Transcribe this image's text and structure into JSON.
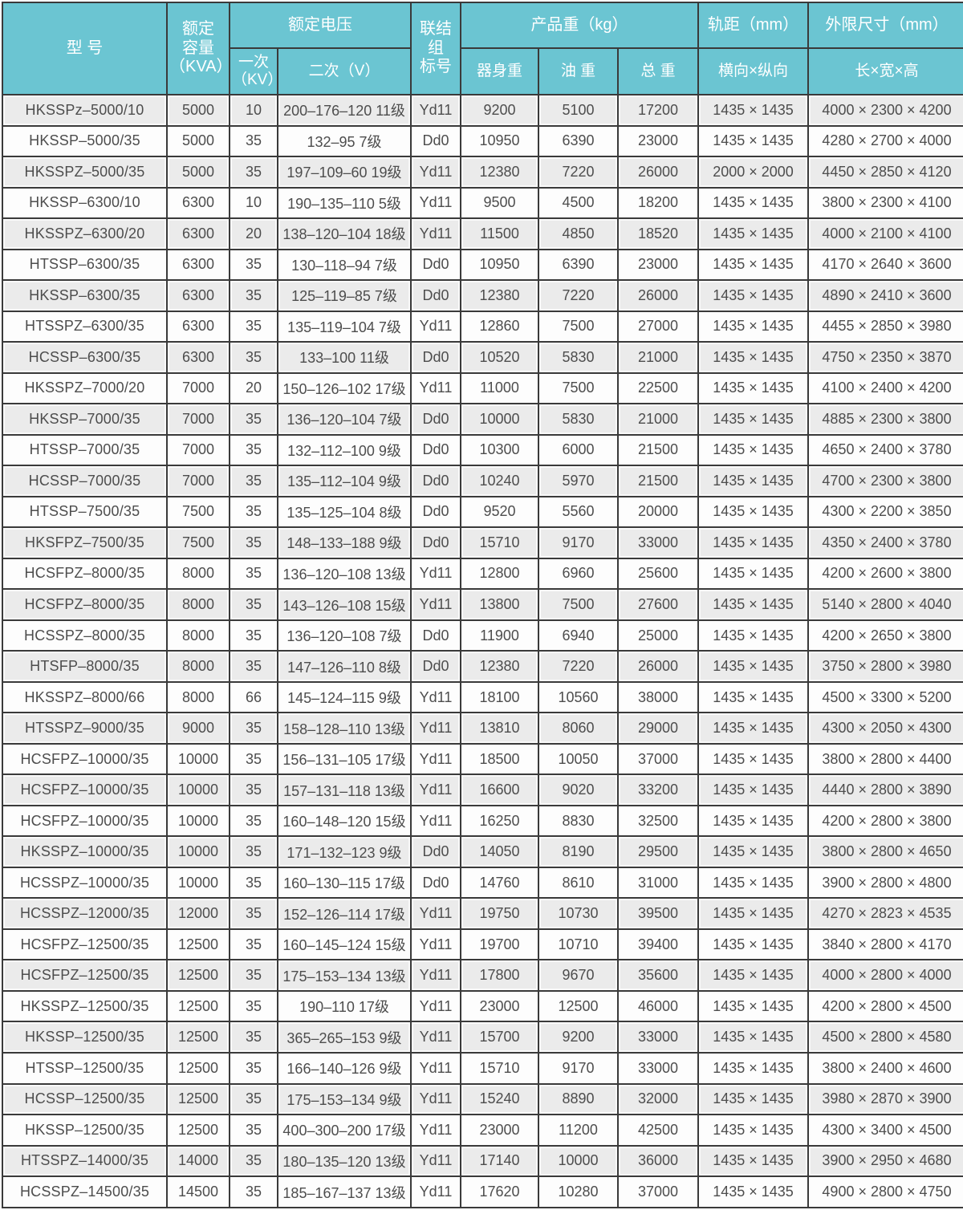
{
  "table": {
    "header": {
      "model": "型      号",
      "capacity": "额定\n容量\n（KVA）",
      "voltage_group": "额定电压",
      "primary": "一次\n（KV）",
      "secondary": "二次（V）",
      "connection": "联结组\n标号",
      "weight_group": "产品重（kg）",
      "body_weight": "器身重",
      "oil_weight": "油 重",
      "total_weight": "总 重",
      "gauge_group": "轨距（mm）",
      "gauge_sub": "横向×纵向",
      "dims_group": "外限尺寸（mm）",
      "dims_sub": "长×宽×高"
    },
    "columns": [
      "model",
      "capacity",
      "primary-kv",
      "secondary-v",
      "connection",
      "body-weight",
      "oil-weight",
      "total-weight",
      "gauge",
      "dimensions"
    ],
    "rows": [
      [
        "HKSSPz–5000/10",
        "5000",
        "10",
        "200–176–120 11级",
        "Yd11",
        "9200",
        "5100",
        "17200",
        "1435 × 1435",
        "4000 × 2300 × 4200"
      ],
      [
        "HKSSP–5000/35",
        "5000",
        "35",
        "132–95 7级",
        "Dd0",
        "10950",
        "6390",
        "23000",
        "1435 × 1435",
        "4280 × 2700 × 4000"
      ],
      [
        "HKSSPZ–5000/35",
        "5000",
        "35",
        "197–109–60 19级",
        "Yd11",
        "12380",
        "7220",
        "26000",
        "2000 × 2000",
        "4450 × 2850 × 4120"
      ],
      [
        "HKSSP–6300/10",
        "6300",
        "10",
        "190–135–110 5级",
        "Yd11",
        "9500",
        "4500",
        "18200",
        "1435 × 1435",
        "3800 × 2300 × 4100"
      ],
      [
        "HKSSPZ–6300/20",
        "6300",
        "20",
        "138–120–104 18级",
        "Yd11",
        "11500",
        "4850",
        "18520",
        "1435 × 1435",
        "4000 × 2100 × 4100"
      ],
      [
        "HTSSP–6300/35",
        "6300",
        "35",
        "130–118–94 7级",
        "Dd0",
        "10950",
        "6390",
        "23000",
        "1435 × 1435",
        "4170 × 2640 × 3600"
      ],
      [
        "HKSSP–6300/35",
        "6300",
        "35",
        "125–119–85 7级",
        "Dd0",
        "12380",
        "7220",
        "26000",
        "1435 × 1435",
        "4890 × 2410 × 3600"
      ],
      [
        "HTSSPZ–6300/35",
        "6300",
        "35",
        "135–119–104 7级",
        "Yd11",
        "12860",
        "7500",
        "27000",
        "1435 × 1435",
        "4455 × 2850 × 3980"
      ],
      [
        "HCSSP–6300/35",
        "6300",
        "35",
        "133–100 11级",
        "Dd0",
        "10520",
        "5830",
        "21000",
        "1435 × 1435",
        "4750 × 2350 × 3870"
      ],
      [
        "HKSSPZ–7000/20",
        "7000",
        "20",
        "150–126–102 17级",
        "Yd11",
        "11000",
        "7500",
        "22500",
        "1435 × 1435",
        "4100 × 2400 × 4200"
      ],
      [
        "HKSSP–7000/35",
        "7000",
        "35",
        "136–120–104 7级",
        "Dd0",
        "10000",
        "5830",
        "21000",
        "1435 × 1435",
        "4885 × 2300 × 3800"
      ],
      [
        "HTSSP–7000/35",
        "7000",
        "35",
        "132–112–100 9级",
        "Dd0",
        "10300",
        "6000",
        "21500",
        "1435 × 1435",
        "4650 × 2400 × 3780"
      ],
      [
        "HCSSP–7000/35",
        "7000",
        "35",
        "135–112–104 9级",
        "Dd0",
        "10240",
        "5970",
        "21500",
        "1435 × 1435",
        "4700 × 2300 × 3800"
      ],
      [
        "HTSSP–7500/35",
        "7500",
        "35",
        "135–125–104 8级",
        "Dd0",
        "9520",
        "5560",
        "20000",
        "1435 × 1435",
        "4300 × 2200 × 3850"
      ],
      [
        "HKSFPZ–7500/35",
        "7500",
        "35",
        "148–133–188 9级",
        "Dd0",
        "15710",
        "9170",
        "33000",
        "1435 × 1435",
        "4350 × 2400 × 3780"
      ],
      [
        "HCSFPZ–8000/35",
        "8000",
        "35",
        "136–120–108 13级",
        "Yd11",
        "12800",
        "6960",
        "25600",
        "1435 × 1435",
        "4200 × 2600 × 3800"
      ],
      [
        "HCSFPZ–8000/35",
        "8000",
        "35",
        "143–126–108 15级",
        "Yd11",
        "13800",
        "7500",
        "27600",
        "1435 × 1435",
        "5140 × 2800 × 4040"
      ],
      [
        "HCSSPZ–8000/35",
        "8000",
        "35",
        "136–120–108 7级",
        "Dd0",
        "11900",
        "6940",
        "25000",
        "1435 × 1435",
        "4200 × 2650 × 3800"
      ],
      [
        "HTSFP–8000/35",
        "8000",
        "35",
        "147–126–110 8级",
        "Dd0",
        "12380",
        "7220",
        "26000",
        "1435 × 1435",
        "3750 × 2800 × 3980"
      ],
      [
        "HKSSPZ–8000/66",
        "8000",
        "66",
        "145–124–115 9级",
        "Yd11",
        "18100",
        "10560",
        "38000",
        "1435 × 1435",
        "4500 × 3300 × 5200"
      ],
      [
        "HTSSPZ–9000/35",
        "9000",
        "35",
        "158–128–110 13级",
        "Yd11",
        "13810",
        "8060",
        "29000",
        "1435 × 1435",
        "4300 × 2050 × 4300"
      ],
      [
        "HCSFPZ–10000/35",
        "10000",
        "35",
        "156–131–105 17级",
        "Yd11",
        "18500",
        "10050",
        "37000",
        "1435 × 1435",
        "3800 × 2800 × 4400"
      ],
      [
        "HCSFPZ–10000/35",
        "10000",
        "35",
        "157–131–118 13级",
        "Yd11",
        "16600",
        "9020",
        "33200",
        "1435 × 1435",
        "4440 × 2800 × 3890"
      ],
      [
        "HCSFPZ–10000/35",
        "10000",
        "35",
        "160–148–120 15级",
        "Yd11",
        "16250",
        "8830",
        "32500",
        "1435 × 1435",
        "4200 × 2800 × 3800"
      ],
      [
        "HKSSPZ–10000/35",
        "10000",
        "35",
        "171–132–123 9级",
        "Dd0",
        "14050",
        "8190",
        "29500",
        "1435 × 1435",
        "3800 × 2800 × 4650"
      ],
      [
        "HCSSPZ–10000/35",
        "10000",
        "35",
        "160–130–115 17级",
        "Dd0",
        "14760",
        "8610",
        "31000",
        "1435 × 1435",
        "3900 × 2800 × 4800"
      ],
      [
        "HCSSPZ–12000/35",
        "12000",
        "35",
        "152–126–114 17级",
        "Yd11",
        "19750",
        "10730",
        "39500",
        "1435 × 1435",
        "4270 × 2823 × 4535"
      ],
      [
        "HCSFPZ–12500/35",
        "12500",
        "35",
        "160–145–124 15级",
        "Yd11",
        "19700",
        "10710",
        "39400",
        "1435 × 1435",
        "3840 × 2800 × 4170"
      ],
      [
        "HCSFPZ–12500/35",
        "12500",
        "35",
        "175–153–134 13级",
        "Yd11",
        "17800",
        "9670",
        "35600",
        "1435 × 1435",
        "4000 × 2800 × 4000"
      ],
      [
        "HKSSPZ–12500/35",
        "12500",
        "35",
        "190–110 17级",
        "Yd11",
        "23000",
        "12500",
        "46000",
        "1435 × 1435",
        "4200 × 2800 × 4500"
      ],
      [
        "HKSSP–12500/35",
        "12500",
        "35",
        "365–265–153 9级",
        "Yd11",
        "15700",
        "9200",
        "33000",
        "1435 × 1435",
        "4500 × 2800 × 4580"
      ],
      [
        "HTSSP–12500/35",
        "12500",
        "35",
        "166–140–126 9级",
        "Yd11",
        "15710",
        "9170",
        "33000",
        "1435 × 1435",
        "3800 × 2400 × 4600"
      ],
      [
        "HCSSP–12500/35",
        "12500",
        "35",
        "175–153–134 9级",
        "Yd11",
        "15240",
        "8890",
        "32000",
        "1435 × 1435",
        "3980 × 2870 × 3900"
      ],
      [
        "HKSSP–12500/35",
        "12500",
        "35",
        "400–300–200 17级",
        "Yd11",
        "23000",
        "11200",
        "42500",
        "1435 × 1435",
        "4300 × 3400 × 4500"
      ],
      [
        "HTSSPZ–14000/35",
        "14000",
        "35",
        "180–135–120 13级",
        "Yd11",
        "17140",
        "10000",
        "36000",
        "1435 × 1435",
        "3900 × 2950 × 4680"
      ],
      [
        "HCSSPZ–14500/35",
        "14500",
        "35",
        "185–167–137 13级",
        "Yd11",
        "17620",
        "10280",
        "37000",
        "1435 × 1435",
        "4900 × 2800 × 4750"
      ]
    ],
    "colors": {
      "header_bg": "#6bc5d2",
      "header_text": "#ffffff",
      "stripe": "#ebebeb",
      "border": "#3a3a3a",
      "text": "#4d4d4d"
    }
  }
}
